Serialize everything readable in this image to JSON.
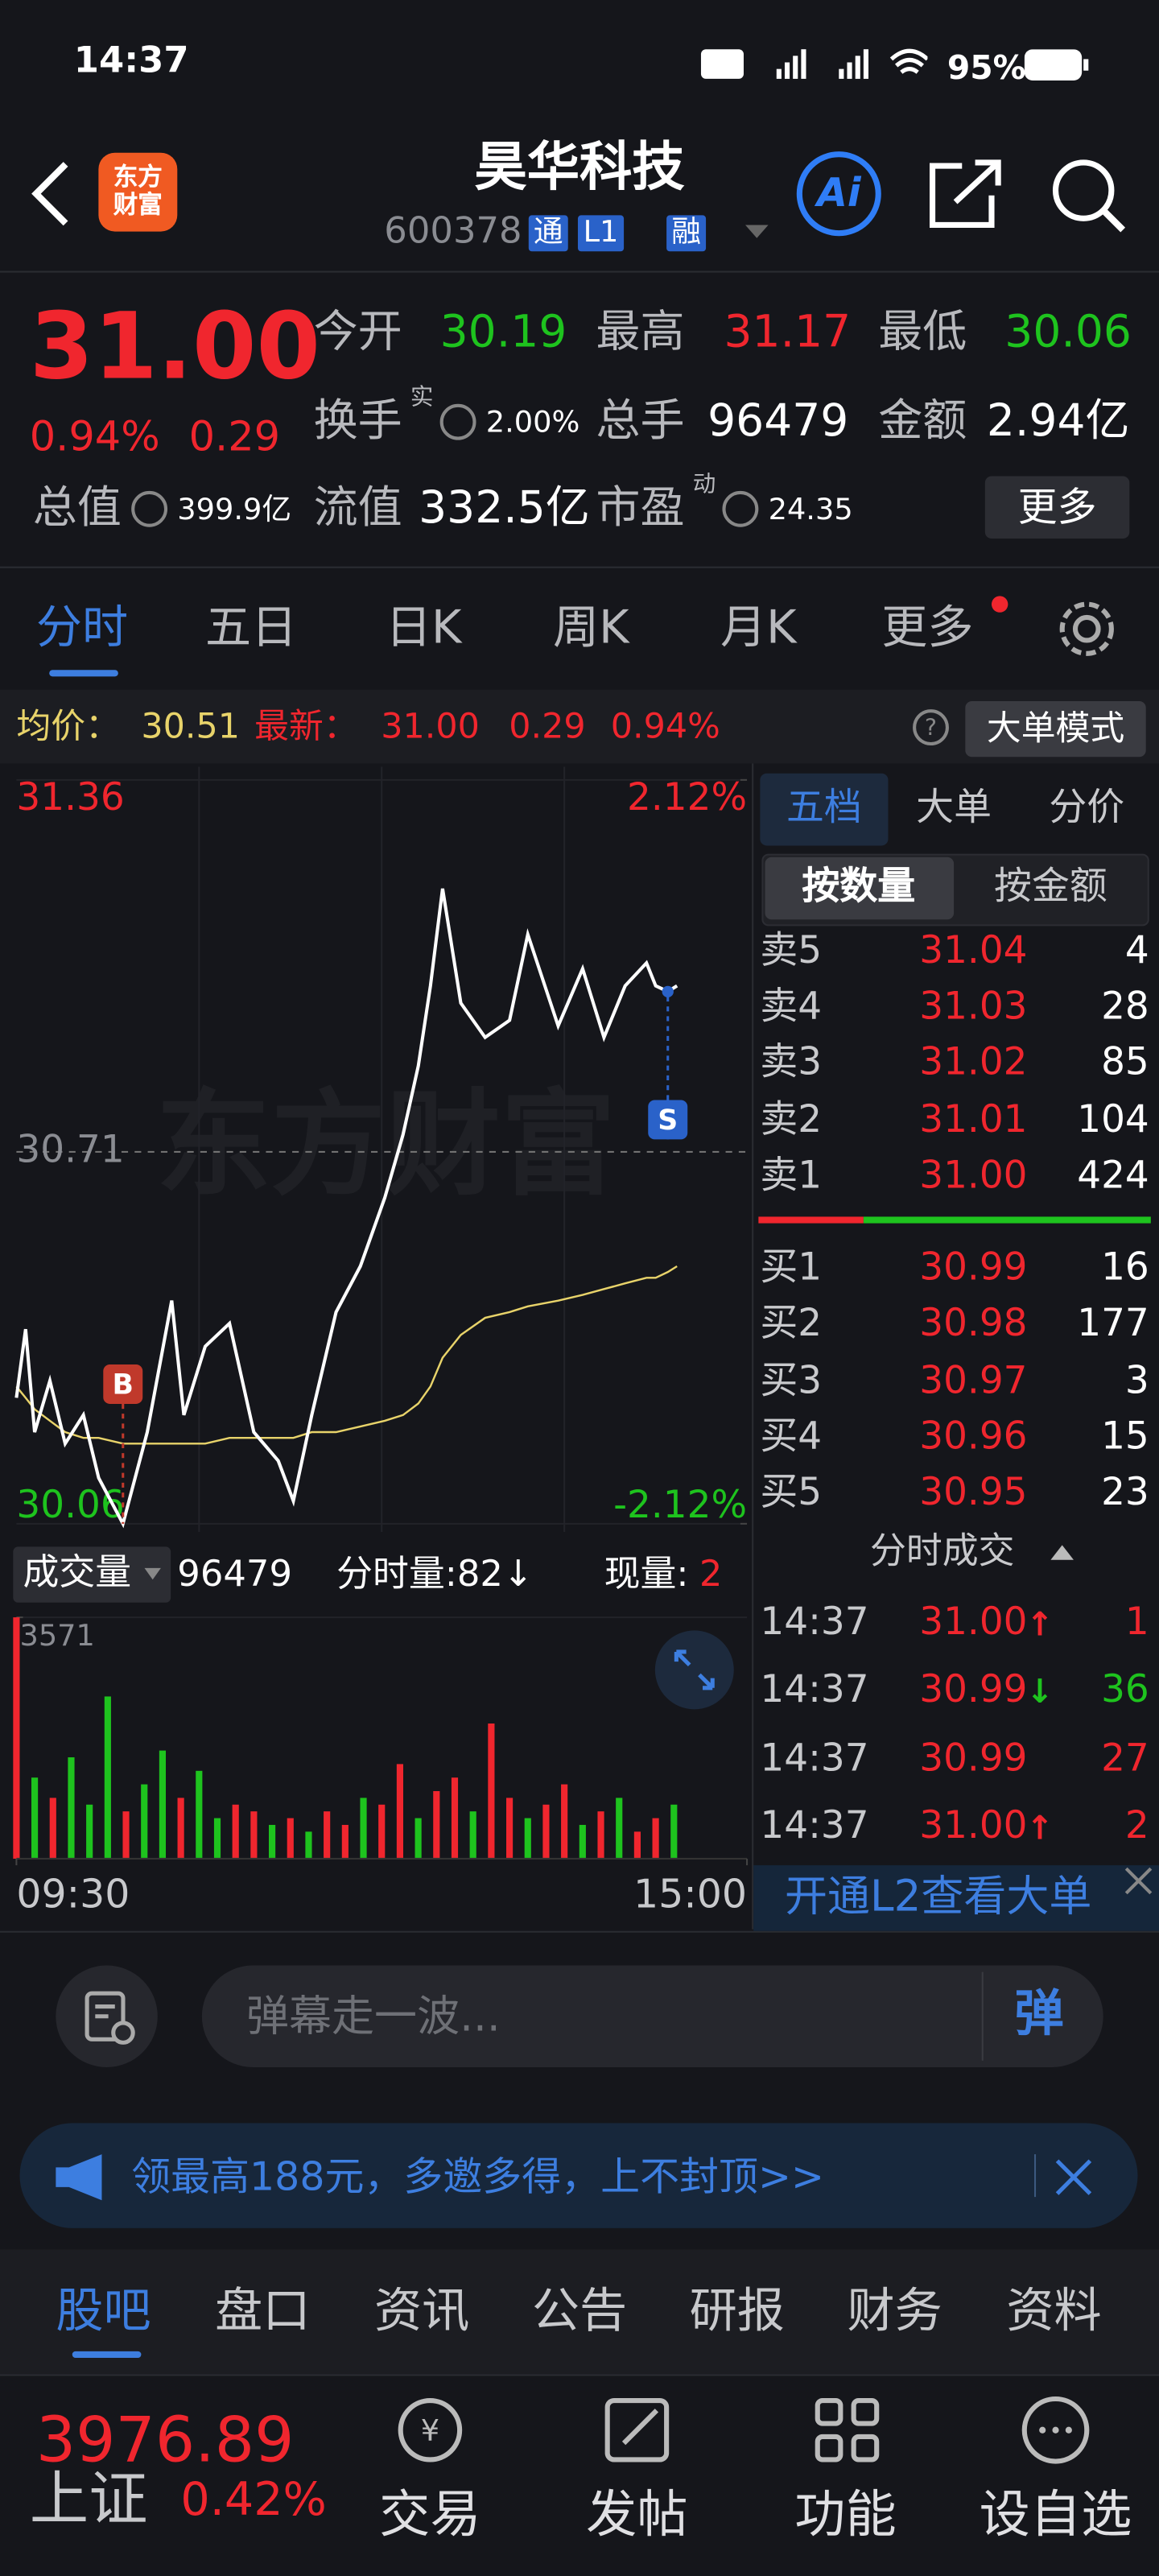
{
  "status_bar": {
    "time": "14:37",
    "battery": "95%"
  },
  "header": {
    "logo": "东方财富",
    "name": "昊华科技",
    "code": "600378",
    "badges": [
      "通",
      "L1",
      "融"
    ]
  },
  "quote": {
    "price": "31.00",
    "change_pct": "0.94%",
    "change": "0.29",
    "stats": [
      {
        "label": "今开",
        "value": "30.19",
        "color": "#1ec31e"
      },
      {
        "label": "最高",
        "value": "31.17",
        "color": "#f0262e"
      },
      {
        "label": "最低",
        "value": "30.06",
        "color": "#1ec31e"
      },
      {
        "label": "换手",
        "sup": "实",
        "value": "2.00%",
        "color": "#ffffff"
      },
      {
        "label": "总手",
        "value": "96479",
        "color": "#ffffff"
      },
      {
        "label": "金额",
        "value": "2.94亿",
        "color": "#ffffff"
      },
      {
        "label": "总值",
        "value": "399.9亿",
        "color": "#ffffff"
      },
      {
        "label": "流值",
        "value": "332.5亿",
        "color": "#ffffff"
      },
      {
        "label": "市盈",
        "sup": "动",
        "value": "24.35",
        "color": "#ffffff"
      }
    ],
    "more": "更多"
  },
  "tabs": [
    "分时",
    "五日",
    "日K",
    "周K",
    "月K",
    "更多"
  ],
  "info_bar": {
    "avg_value": "30.51",
    "latest_value": "31.00",
    "change": "0.29",
    "change_pct": "0.94%",
    "mode_button": "大单模式"
  },
  "watermark": "东方财富",
  "chart_data": [
    {
      "type": "line",
      "x": [
        0,
        3,
        6,
        11,
        16,
        22,
        27,
        35,
        43,
        51,
        55,
        62,
        70,
        78,
        86,
        91,
        97,
        105,
        113,
        121,
        127,
        132,
        136,
        140,
        146,
        154,
        162,
        168,
        178,
        186,
        193,
        200,
        207,
        210,
        214,
        217
      ],
      "xlim": [
        0,
        240
      ],
      "xticks": [
        {
          "value": 0,
          "label": "09:30"
        },
        {
          "value": 240,
          "label": "15:00"
        }
      ],
      "ylim": [
        30.06,
        31.36
      ],
      "yticks": [
        31.36,
        30.71,
        30.06
      ],
      "y2lim": [
        -2.12,
        2.12
      ],
      "y2ticks": [
        {
          "value": 2.12,
          "label": "2.12%"
        },
        {
          "value": -2.12,
          "label": "-2.12%"
        }
      ],
      "series": [
        {
          "name": "最新：",
          "color": "#ffffff",
          "values": [
            30.28,
            30.4,
            30.22,
            30.31,
            30.2,
            30.25,
            30.14,
            30.06,
            30.22,
            30.45,
            30.25,
            30.37,
            30.41,
            30.22,
            30.17,
            30.1,
            30.25,
            30.43,
            30.51,
            30.63,
            30.74,
            30.86,
            31.0,
            31.17,
            30.97,
            30.91,
            30.94,
            31.09,
            30.93,
            31.03,
            30.91,
            31.0,
            31.04,
            31.0,
            30.99,
            31.0
          ]
        },
        {
          "name": "均价：",
          "color": "#e8d36a",
          "values": [
            30.3,
            30.28,
            30.26,
            30.24,
            30.22,
            30.21,
            30.21,
            30.2,
            30.2,
            30.2,
            30.2,
            30.2,
            30.21,
            30.21,
            30.21,
            30.21,
            30.22,
            30.22,
            30.23,
            30.24,
            30.25,
            30.27,
            30.3,
            30.35,
            30.39,
            30.42,
            30.43,
            30.44,
            30.45,
            30.46,
            30.47,
            30.48,
            30.49,
            30.49,
            30.5,
            30.51
          ]
        }
      ],
      "annotations": [
        "B",
        "S"
      ]
    },
    {
      "type": "bar",
      "x": [
        0,
        6,
        12,
        18,
        24,
        30,
        36,
        42,
        48,
        54,
        60,
        66,
        72,
        78,
        84,
        90,
        96,
        102,
        108,
        114,
        120,
        126,
        132,
        138,
        144,
        150,
        156,
        162,
        168,
        174,
        180,
        186,
        192,
        198,
        204,
        210,
        216
      ],
      "xlim": [
        0,
        240
      ],
      "ylim": [
        0,
        3571
      ],
      "yticks": [
        3571
      ],
      "values": [
        3571,
        1200,
        900,
        1500,
        800,
        2400,
        700,
        1100,
        1600,
        900,
        1300,
        600,
        800,
        700,
        500,
        600,
        400,
        700,
        500,
        900,
        800,
        1400,
        600,
        1000,
        1200,
        700,
        2000,
        900,
        600,
        800,
        1100,
        500,
        700,
        900,
        400,
        600,
        800
      ],
      "colors": [
        "#f0262e",
        "#1ec31e",
        "#f0262e",
        "#1ec31e",
        "#1ec31e",
        "#1ec31e",
        "#f0262e",
        "#1ec31e",
        "#1ec31e",
        "#f0262e",
        "#1ec31e",
        "#1ec31e",
        "#f0262e",
        "#f0262e",
        "#1ec31e",
        "#f0262e",
        "#1ec31e",
        "#f0262e",
        "#f0262e",
        "#1ec31e",
        "#f0262e",
        "#f0262e",
        "#1ec31e",
        "#f0262e",
        "#f0262e",
        "#1ec31e",
        "#f0262e",
        "#f0262e",
        "#1ec31e",
        "#f0262e",
        "#f0262e",
        "#1ec31e",
        "#f0262e",
        "#1ec31e",
        "#f0262e",
        "#f0262e",
        "#1ec31e"
      ]
    }
  ],
  "volume_header": {
    "label": "成交量",
    "total": "96479",
    "minute_volume": "分时量:82↓",
    "current_label": "现量:",
    "current_value": "2"
  },
  "order_book": {
    "tabs": [
      "五档",
      "大单",
      "分价"
    ],
    "subtabs": [
      "按数量",
      "按金额"
    ],
    "asks": [
      {
        "label": "卖5",
        "price": "31.04",
        "qty": "4"
      },
      {
        "label": "卖4",
        "price": "31.03",
        "qty": "28"
      },
      {
        "label": "卖3",
        "price": "31.02",
        "qty": "85"
      },
      {
        "label": "卖2",
        "price": "31.01",
        "qty": "104"
      },
      {
        "label": "卖1",
        "price": "31.00",
        "qty": "424"
      }
    ],
    "bids": [
      {
        "label": "买1",
        "price": "30.99",
        "qty": "16"
      },
      {
        "label": "买2",
        "price": "30.98",
        "qty": "177"
      },
      {
        "label": "买3",
        "price": "30.97",
        "qty": "3"
      },
      {
        "label": "买4",
        "price": "30.96",
        "qty": "15"
      },
      {
        "label": "买5",
        "price": "30.95",
        "qty": "23"
      }
    ]
  },
  "trades": {
    "title": "分时成交",
    "rows": [
      {
        "time": "14:37",
        "price": "31.00",
        "dir": "↑",
        "qty": "1",
        "color": "#f0262e"
      },
      {
        "time": "14:37",
        "price": "30.99",
        "dir": "↓",
        "qty": "36",
        "color": "#1ec31e"
      },
      {
        "time": "14:37",
        "price": "30.99",
        "dir": "",
        "qty": "27",
        "color": "#f0262e"
      },
      {
        "time": "14:37",
        "price": "31.00",
        "dir": "↑",
        "qty": "2",
        "color": "#f0262e"
      }
    ]
  },
  "l2_banner": "开通L2查看大单",
  "comment": {
    "placeholder": "弹幕走一波...",
    "button": "弹"
  },
  "promo": "领最高188元，多邀多得，上不封顶>>",
  "bottom_tabs": [
    "股吧",
    "盘口",
    "资讯",
    "公告",
    "研报",
    "财务",
    "资料"
  ],
  "footer": {
    "index_value": "3976.89",
    "index_name": "上证",
    "index_change": "0.42%",
    "buttons": [
      "交易",
      "发帖",
      "功能",
      "设自选"
    ]
  }
}
